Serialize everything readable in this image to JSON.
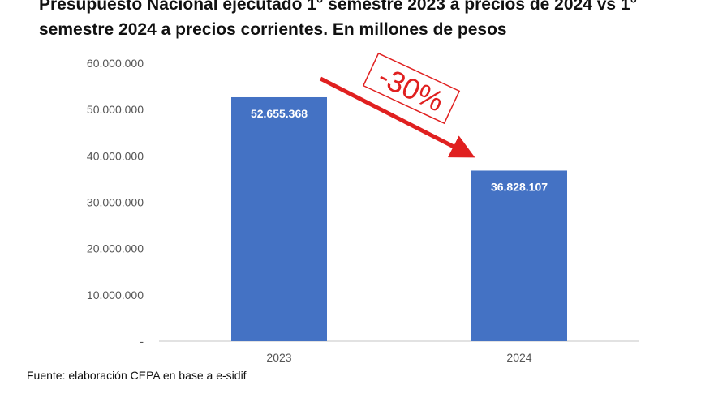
{
  "chart_data": {
    "type": "bar",
    "title_line1": "Presupuesto Nacional ejecutado 1° semestre 2023 a precios de 2024 vs 1°",
    "title_line2": "semestre 2024 a precios corrientes. En millones de pesos",
    "categories": [
      "2023",
      "2024"
    ],
    "values": [
      52655368,
      36828107
    ],
    "value_labels": [
      "52.655.368",
      "36.828.107"
    ],
    "ylim": [
      0,
      60000000
    ],
    "yticks": [
      0,
      10000000,
      20000000,
      30000000,
      40000000,
      50000000,
      60000000
    ],
    "ytick_labels": [
      "-",
      "10.000.000",
      "20.000.000",
      "30.000.000",
      "40.000.000",
      "50.000.000",
      "60.000.000"
    ],
    "grid": false,
    "bar_color": "#4472c4",
    "annotation": {
      "text": "-30%",
      "color": "#e02020"
    }
  },
  "source": "Fuente: elaboración CEPA en base a e-sidif"
}
